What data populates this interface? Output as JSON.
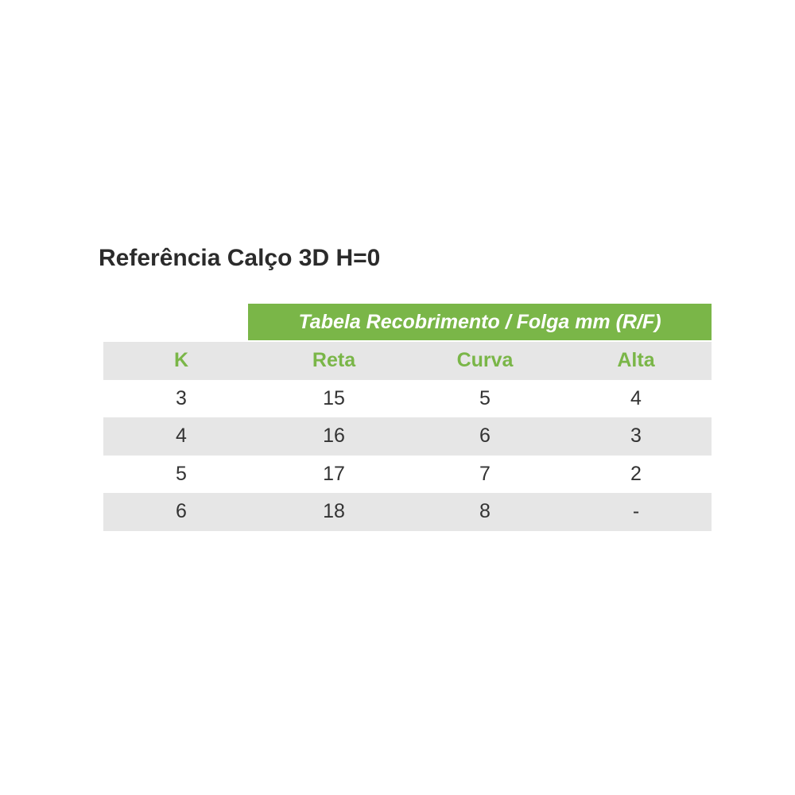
{
  "title": "Referência Calço 3D H=0",
  "table": {
    "group_header": "Tabela Recobrimento / Folga mm (R/F)",
    "columns": [
      "K",
      "Reta",
      "Curva",
      "Alta"
    ],
    "rows": [
      [
        "3",
        "15",
        "5",
        "4"
      ],
      [
        "4",
        "16",
        "6",
        "3"
      ],
      [
        "5",
        "17",
        "7",
        "2"
      ],
      [
        "6",
        "18",
        "8",
        "-"
      ]
    ]
  },
  "colors": {
    "accent": "#7ab648",
    "stripe": "#e6e6e6"
  }
}
